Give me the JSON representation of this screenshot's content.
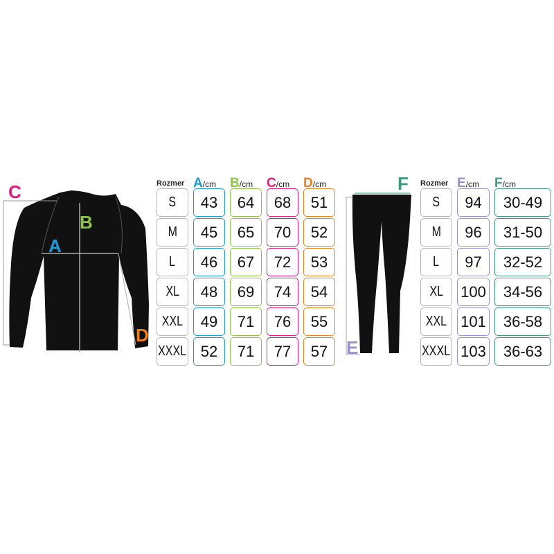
{
  "colors": {
    "A": "#1b9bd8",
    "B": "#8cc63f",
    "C": "#e5197b",
    "D": "#f07f1a",
    "E": "#9b8fca",
    "F": "#3b9b80",
    "size": "#b5b5b5"
  },
  "labels": {
    "A": "A",
    "B": "B",
    "C": "C",
    "D": "D",
    "E": "E",
    "F": "F"
  },
  "shirt_table": {
    "size_header": "Rozmer",
    "unit": "/cm",
    "columns": [
      "A",
      "B",
      "C",
      "D"
    ],
    "rows": [
      {
        "size": "S",
        "values": [
          "43",
          "64",
          "68",
          "51"
        ]
      },
      {
        "size": "M",
        "values": [
          "45",
          "65",
          "70",
          "52"
        ]
      },
      {
        "size": "L",
        "values": [
          "46",
          "67",
          "72",
          "53"
        ]
      },
      {
        "size": "XL",
        "values": [
          "48",
          "69",
          "74",
          "54"
        ]
      },
      {
        "size": "XXL",
        "values": [
          "49",
          "71",
          "76",
          "55"
        ]
      },
      {
        "size": "XXXL",
        "values": [
          "52",
          "71",
          "77",
          "57"
        ]
      }
    ]
  },
  "pants_table": {
    "size_header": "Rozmer",
    "unit": "/cm",
    "columns": [
      "E",
      "F"
    ],
    "rows": [
      {
        "size": "S",
        "values": [
          "94",
          "30-49"
        ]
      },
      {
        "size": "M",
        "values": [
          "96",
          "31-50"
        ]
      },
      {
        "size": "L",
        "values": [
          "97",
          "32-52"
        ]
      },
      {
        "size": "XL",
        "values": [
          "100",
          "34-56"
        ]
      },
      {
        "size": "XXL",
        "values": [
          "101",
          "36-58"
        ]
      },
      {
        "size": "XXXL",
        "values": [
          "103",
          "36-63"
        ]
      }
    ]
  }
}
